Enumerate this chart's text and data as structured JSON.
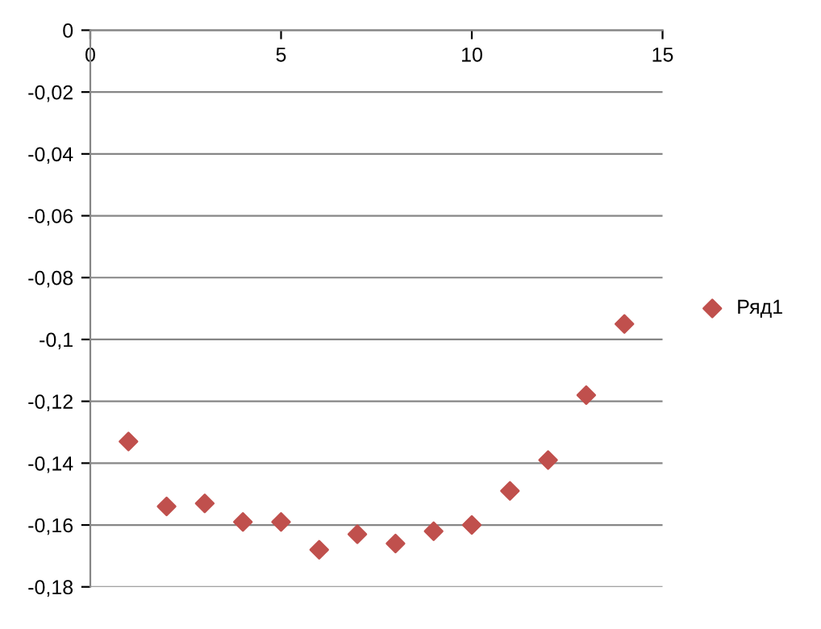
{
  "chart_data": {
    "type": "scatter",
    "x": [
      1,
      2,
      3,
      4,
      5,
      6,
      7,
      8,
      9,
      10,
      11,
      12,
      13,
      14
    ],
    "series": [
      {
        "name": "Ряд1",
        "color": "#c0504d",
        "values": [
          -0.133,
          -0.154,
          -0.153,
          -0.159,
          -0.159,
          -0.168,
          -0.163,
          -0.166,
          -0.162,
          -0.16,
          -0.149,
          -0.139,
          -0.118,
          -0.095
        ]
      }
    ],
    "xlim": [
      0,
      15
    ],
    "xticks": [
      0,
      5,
      10,
      15
    ],
    "ylim": [
      -0.18,
      0
    ],
    "yticks": [
      {
        "value": 0,
        "label": "0"
      },
      {
        "value": -0.02,
        "label": "-0,02"
      },
      {
        "value": -0.04,
        "label": "-0,04"
      },
      {
        "value": -0.06,
        "label": "-0,06"
      },
      {
        "value": -0.08,
        "label": "-0,08"
      },
      {
        "value": -0.1,
        "label": "-0,1"
      },
      {
        "value": -0.12,
        "label": "-0,12"
      },
      {
        "value": -0.14,
        "label": "-0,14"
      },
      {
        "value": -0.16,
        "label": "-0,16"
      },
      {
        "value": -0.18,
        "label": "-0,18"
      }
    ],
    "grid": "y",
    "legend": "right",
    "marker": "diamond"
  }
}
